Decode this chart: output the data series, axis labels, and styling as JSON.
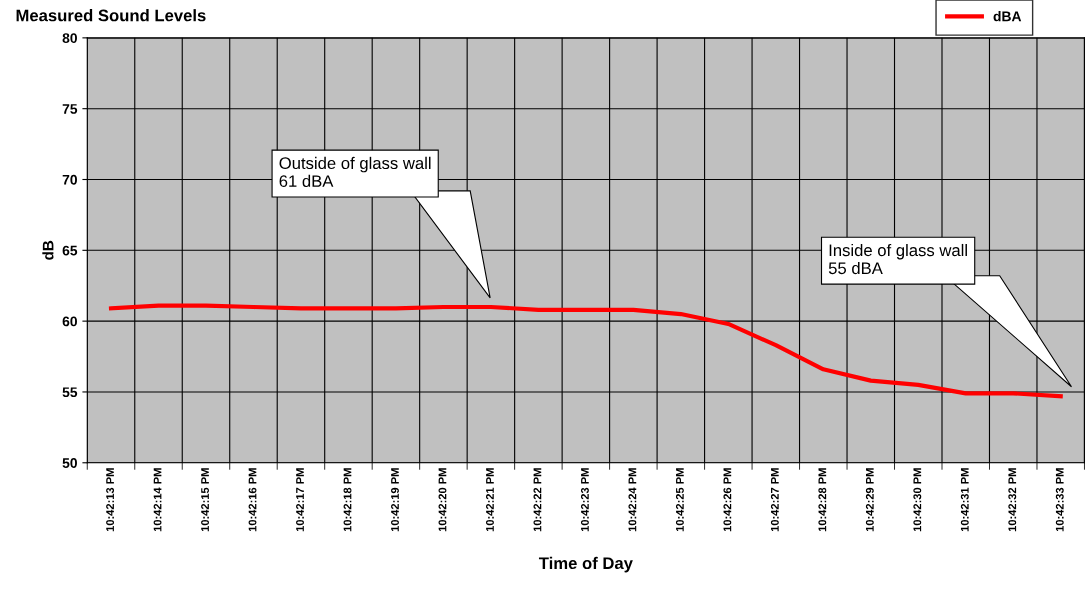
{
  "chart_data": {
    "type": "line",
    "title": "Measured Sound Levels",
    "xlabel": "Time of Day",
    "ylabel": "dB",
    "categories": [
      "10:42:13 PM",
      "10:42:14 PM",
      "10:42:15 PM",
      "10:42:16 PM",
      "10:42:17 PM",
      "10:42:18 PM",
      "10:42:19 PM",
      "10:42:20 PM",
      "10:42:21 PM",
      "10:42:22 PM",
      "10:42:23 PM",
      "10:42:24 PM",
      "10:42:25 PM",
      "10:42:26 PM",
      "10:42:27 PM",
      "10:42:28 PM",
      "10:42:29 PM",
      "10:42:30 PM",
      "10:42:31 PM",
      "10:42:32 PM",
      "10:42:33 PM"
    ],
    "series": [
      {
        "name": "dBA",
        "color": "#ff0000",
        "values": [
          60.9,
          61.1,
          61.1,
          61.0,
          60.9,
          60.9,
          60.9,
          61.0,
          61.0,
          60.8,
          60.8,
          60.8,
          60.5,
          59.8,
          58.3,
          56.6,
          55.8,
          55.5,
          54.9,
          54.9,
          54.7
        ]
      }
    ],
    "ylim": [
      50,
      80
    ],
    "yticks": [
      50,
      55,
      60,
      65,
      70,
      75,
      80
    ],
    "annotations": [
      "Outside of glass wall\n61 dBA",
      "Inside of glass wall\n55 dBA"
    ],
    "grid": true,
    "legend": "top right",
    "marker": "none",
    "line_style": "solid"
  }
}
